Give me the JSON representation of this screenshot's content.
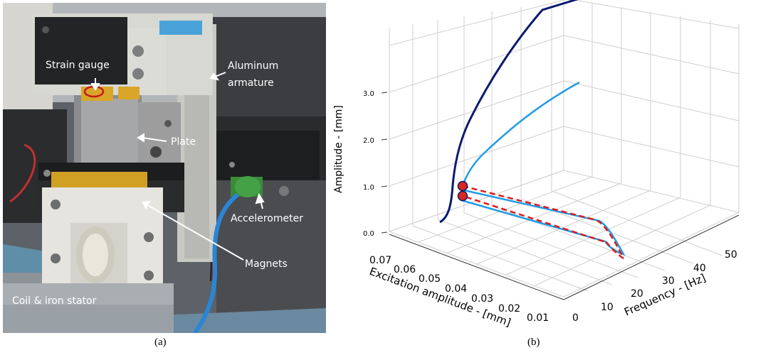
{
  "photo": {
    "labels": {
      "strain_gauge": "Strain gauge",
      "aluminum_armature_1": "Aluminum",
      "aluminum_armature_2": "armature",
      "plate": "Plate",
      "accelerometer": "Accelerometer",
      "magnets": "Magnets",
      "coil_stator": "Coil & iron stator"
    },
    "caption": "(a)"
  },
  "plot": {
    "caption": "(b)",
    "colors": {
      "dark_curve": "#0b1a6e",
      "light_curve": "#1f9be6",
      "red_dashed": "#e01b1b",
      "marker": "#d8261f"
    }
  },
  "chart_data": {
    "type": "line",
    "projection": "3d",
    "axes": {
      "x": {
        "label": "Frequency - [Hz]",
        "ticks": [
          "0",
          "10",
          "20",
          "30",
          "40",
          "50"
        ],
        "range": [
          0,
          50
        ]
      },
      "y": {
        "label": "Excitation amplitude - [mm]",
        "ticks": [
          "0.07",
          "0.06",
          "0.05",
          "0.04",
          "0.03",
          "0.02",
          "0.01"
        ],
        "range": [
          0.0,
          0.075
        ]
      },
      "z": {
        "label": "Amplitude - [mm]",
        "ticks": [
          "0.0",
          "1.0",
          "2.0",
          "3.0"
        ],
        "range": [
          0.0,
          3.5
        ]
      }
    },
    "grid": true,
    "series": [
      {
        "style": "solid",
        "color": "#0b1a6e",
        "points": [
          [
            28,
            0.075,
            0.2
          ],
          [
            28.5,
            0.075,
            0.5
          ],
          [
            29.5,
            0.075,
            1.0
          ],
          [
            31.5,
            0.075,
            1.6
          ],
          [
            34,
            0.075,
            2.3
          ],
          [
            37.5,
            0.075,
            3.0
          ],
          [
            41.5,
            0.075,
            3.6
          ]
        ]
      },
      {
        "style": "solid",
        "color": "#1f9be6",
        "points": [
          [
            30,
            0.05,
            1.1
          ],
          [
            31,
            0.05,
            1.3
          ],
          [
            33,
            0.05,
            1.7
          ],
          [
            36,
            0.05,
            2.2
          ],
          [
            39,
            0.05,
            2.7
          ]
        ]
      },
      {
        "style": "solid",
        "color": "#1f9be6",
        "points": [
          [
            30,
            0.05,
            1.0
          ],
          [
            30,
            0.01,
            0.8
          ],
          [
            33,
            0.005,
            0.45
          ],
          [
            35,
            0.005,
            0.3
          ],
          [
            32,
            0.01,
            0.5
          ],
          [
            30,
            0.05,
            0.8
          ]
        ]
      },
      {
        "style": "dashed",
        "color": "#e01b1b",
        "points": [
          [
            30,
            0.05,
            1.02
          ],
          [
            30,
            0.01,
            0.82
          ],
          [
            34,
            0.005,
            0.4
          ],
          [
            32,
            0.01,
            0.52
          ],
          [
            30,
            0.05,
            0.82
          ]
        ]
      }
    ],
    "markers": [
      [
        30,
        0.05,
        1.0
      ],
      [
        30,
        0.05,
        0.8
      ]
    ]
  }
}
